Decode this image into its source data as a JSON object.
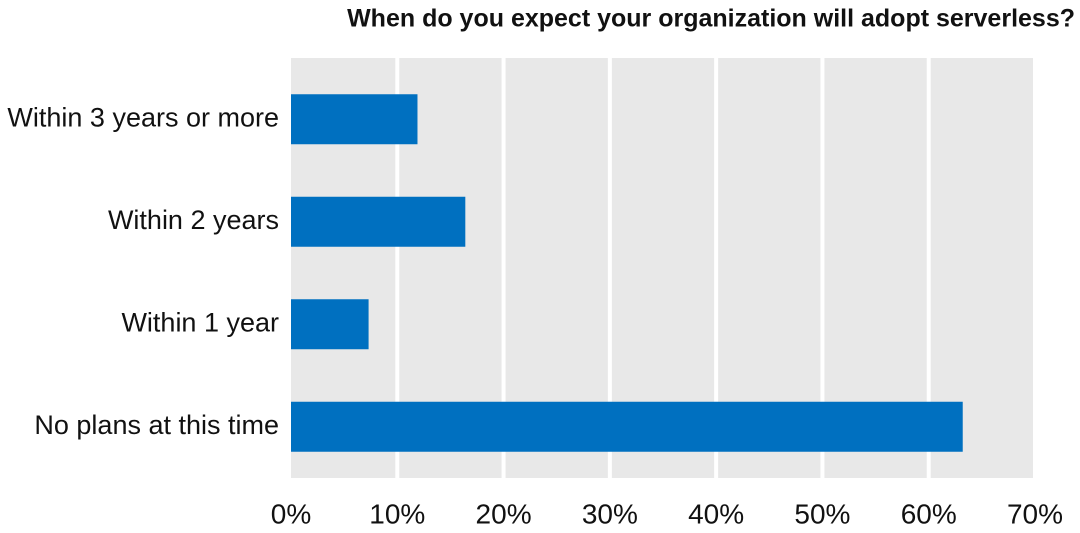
{
  "chart_data": {
    "type": "bar",
    "orientation": "horizontal",
    "title": "When do you expect your organization will adopt serverless?",
    "categories": [
      "Within 3 years or more",
      "Within 2 years",
      "Within 1 year",
      "No plans at this time"
    ],
    "values": [
      11.9,
      16.4,
      7.3,
      63.2
    ],
    "color": "#0070c0",
    "xlim": [
      0,
      70
    ],
    "xticks": [
      {
        "value": 0,
        "label": "0%"
      },
      {
        "value": 10,
        "label": "10%"
      },
      {
        "value": 20,
        "label": "20%"
      },
      {
        "value": 30,
        "label": "30%"
      },
      {
        "value": 40,
        "label": "40%"
      },
      {
        "value": 50,
        "label": "50%"
      },
      {
        "value": 60,
        "label": "60%"
      },
      {
        "value": 70,
        "label": "70%"
      }
    ],
    "grid": true
  }
}
